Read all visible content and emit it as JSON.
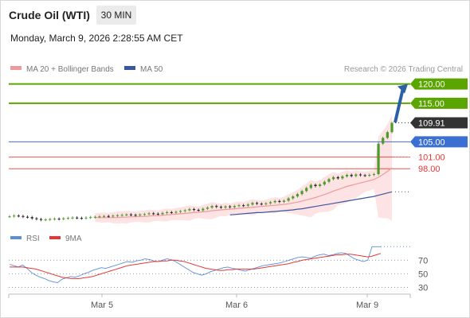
{
  "header": {
    "instrument": "Crude Oil (WTI)",
    "interval": "30 MIN",
    "datetime": "Monday, March 9, 2026 2:28:55 AM CET"
  },
  "legend": {
    "ma20": "MA 20 + Bollinger Bands",
    "ma50": "MA 50",
    "copyright": "Research © 2026 Trading Central",
    "rsi": "RSI",
    "rsi_ma": "9MA"
  },
  "colors": {
    "resistance": "#5aa500",
    "support": "#3b6fd1",
    "support_light": "#e53935",
    "last_price": "#333333",
    "ma20": "#ef9a9a",
    "ma50": "#3a56a0",
    "bollinger_fill": "#fde0e0",
    "candle_up": "#4c9a2a",
    "candle_down": "#222222",
    "arrow": "#2d5fa8",
    "rsi": "#5b8dd9",
    "rsi_ma": "#e53935"
  },
  "chart_data": [
    {
      "type": "candlestick",
      "title": "Crude Oil (WTI)",
      "x_tick_labels": [
        "Mar 5",
        "Mar 6",
        "Mar 9"
      ],
      "ylim": [
        84,
        122
      ],
      "last_price": 109.91,
      "key_levels": [
        {
          "label": "120.00",
          "value": 120.0,
          "kind": "resistance"
        },
        {
          "label": "115.00",
          "value": 115.0,
          "kind": "resistance"
        },
        {
          "label": "105.00",
          "value": 105.0,
          "kind": "pivot"
        },
        {
          "label": "101.00",
          "value": 101.0,
          "kind": "support"
        },
        {
          "label": "98.00",
          "value": 98.0,
          "kind": "support"
        }
      ],
      "last_price_label": "109.91",
      "close_series": [
        85.6,
        85.8,
        85.7,
        85.5,
        85.4,
        85.1,
        84.9,
        84.7,
        84.8,
        84.9,
        85.0,
        84.9,
        85.1,
        85.2,
        85.3,
        85.2,
        85.1,
        85.3,
        85.4,
        85.5,
        85.6,
        85.7,
        85.6,
        85.8,
        85.9,
        86.0,
        86.1,
        86.0,
        85.9,
        86.1,
        86.2,
        86.4,
        86.3,
        86.2,
        86.5,
        86.7,
        86.6,
        86.8,
        87.0,
        87.2,
        87.5,
        87.3,
        87.2,
        87.6,
        87.9,
        88.3,
        88.1,
        87.9,
        88.2,
        88.0,
        88.3,
        88.5,
        88.4,
        88.7,
        89.1,
        88.9,
        88.8,
        89.0,
        89.3,
        89.6,
        89.4,
        89.7,
        90.3,
        90.8,
        91.4,
        92.2,
        93.0,
        93.8,
        93.5,
        93.9,
        94.6,
        95.3,
        95.8,
        95.5,
        96.0,
        96.4,
        96.1,
        96.5,
        96.3,
        96.2,
        96.4,
        96.6,
        104.5,
        106.0,
        107.5,
        109.91
      ],
      "ma20_series": [
        null,
        null,
        null,
        null,
        null,
        null,
        null,
        null,
        null,
        null,
        null,
        null,
        null,
        null,
        null,
        null,
        null,
        null,
        null,
        85.3,
        85.3,
        85.3,
        85.3,
        85.3,
        85.3,
        85.4,
        85.4,
        85.5,
        85.5,
        85.6,
        85.6,
        85.7,
        85.8,
        85.8,
        85.9,
        86.0,
        86.1,
        86.2,
        86.3,
        86.4,
        86.5,
        86.6,
        86.7,
        86.8,
        86.9,
        87.1,
        87.2,
        87.3,
        87.4,
        87.5,
        87.6,
        87.7,
        87.8,
        87.9,
        88.0,
        88.1,
        88.2,
        88.3,
        88.4,
        88.5,
        88.6,
        88.7,
        88.9,
        89.1,
        89.3,
        89.6,
        89.9,
        90.2,
        90.5,
        90.9,
        91.3,
        91.7,
        92.2,
        92.6,
        93.0,
        93.4,
        93.7,
        94.0,
        94.3,
        94.6,
        94.9,
        95.2,
        95.8,
        96.5,
        97.3,
        98.2
      ],
      "ma50_series": [
        null,
        null,
        null,
        null,
        null,
        null,
        null,
        null,
        null,
        null,
        null,
        null,
        null,
        null,
        null,
        null,
        null,
        null,
        null,
        null,
        null,
        null,
        null,
        null,
        null,
        null,
        null,
        null,
        null,
        null,
        null,
        null,
        null,
        null,
        null,
        null,
        null,
        null,
        null,
        null,
        null,
        null,
        null,
        null,
        null,
        null,
        null,
        null,
        null,
        86.0,
        86.1,
        86.2,
        86.3,
        86.4,
        86.5,
        86.6,
        86.6,
        86.7,
        86.8,
        86.9,
        87.0,
        87.1,
        87.2,
        87.3,
        87.5,
        87.6,
        87.8,
        88.0,
        88.2,
        88.4,
        88.6,
        88.8,
        89.0,
        89.2,
        89.4,
        89.6,
        89.8,
        90.0,
        90.2,
        90.4,
        90.6,
        90.8,
        91.1,
        91.4,
        91.7,
        92.0
      ],
      "forecast_arrow": {
        "from": 110.0,
        "to": 120.0
      },
      "ma20_projection": 101.0,
      "ma50_projection": 92.0
    },
    {
      "type": "line",
      "title": "RSI",
      "series_names": [
        "RSI",
        "9MA"
      ],
      "ylim": [
        20,
        95
      ],
      "y_tick_labels": [
        "70",
        "50",
        "30"
      ],
      "y_tick_values": [
        70,
        50,
        30
      ],
      "rsi_series": [
        64,
        62,
        60,
        63,
        58,
        52,
        48,
        45,
        43,
        40,
        38,
        37,
        42,
        44,
        46,
        45,
        47,
        50,
        52,
        55,
        57,
        59,
        58,
        60,
        62,
        64,
        66,
        68,
        67,
        69,
        70,
        72,
        71,
        69,
        68,
        70,
        72,
        71,
        68,
        64,
        60,
        56,
        52,
        50,
        48,
        50,
        53,
        55,
        57,
        59,
        60,
        58,
        57,
        55,
        54,
        56,
        58,
        60,
        62,
        63,
        64,
        65,
        66,
        68,
        70,
        72,
        74,
        75,
        74,
        73,
        76,
        78,
        79,
        77,
        78,
        80,
        81,
        80,
        76,
        72,
        70,
        68,
        70,
        90,
        90,
        90
      ],
      "rsi_ma_series": [
        60,
        60,
        60,
        60,
        59,
        58,
        57,
        55,
        53,
        51,
        49,
        47,
        45,
        44,
        43,
        43,
        43,
        44,
        45,
        46,
        48,
        50,
        52,
        54,
        56,
        58,
        60,
        62,
        63,
        64,
        65,
        66,
        67,
        68,
        68,
        69,
        69,
        70,
        70,
        69,
        68,
        66,
        64,
        62,
        60,
        58,
        57,
        56,
        55,
        55,
        56,
        56,
        57,
        57,
        57,
        57,
        57,
        58,
        59,
        60,
        61,
        62,
        63,
        64,
        65,
        67,
        68,
        70,
        71,
        72,
        73,
        74,
        75,
        76,
        77,
        78,
        78,
        79,
        79,
        78,
        77,
        76,
        75,
        76,
        78,
        80
      ],
      "rsi_last": 90
    }
  ]
}
